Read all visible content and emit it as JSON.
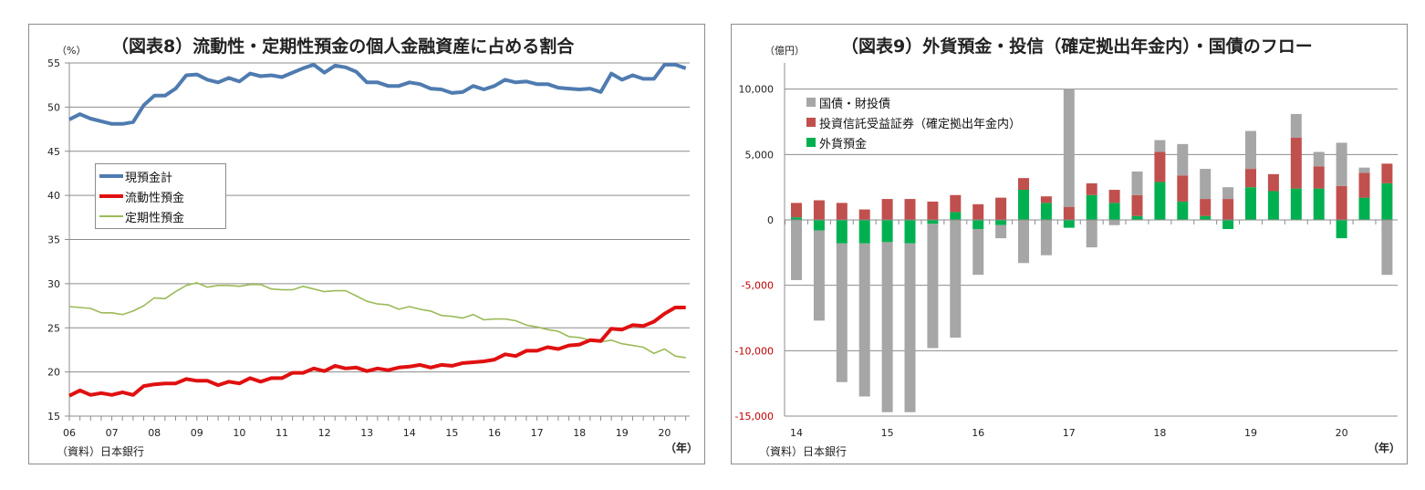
{
  "charts": {
    "left": {
      "title": "（図表8）流動性・定期性預金の個人金融資産に占める割合",
      "unit_label": "（%）",
      "source_label": "（資料）日本銀行",
      "year_suffix": "（年）"
    },
    "right": {
      "title": "（図表9）外貨預金・投信（確定拠出年金内）・国債のフロー",
      "unit_label": "（億円）",
      "source_label": "（資料）日本銀行",
      "year_suffix": "（年）"
    }
  },
  "chart_data": [
    {
      "type": "line",
      "title": "（図表8）流動性・定期性預金の個人金融資産に占める割合",
      "xlabel": "（年）",
      "ylabel": "（%）",
      "ylim": [
        15,
        55
      ],
      "yticks": [
        "15",
        "20",
        "25",
        "30",
        "35",
        "40",
        "45",
        "50",
        "55"
      ],
      "xticks": [
        "06",
        "07",
        "08",
        "09",
        "10",
        "11",
        "12",
        "13",
        "14",
        "15",
        "16",
        "17",
        "18",
        "19",
        "20"
      ],
      "x_start": "06Q1",
      "frequency": "quarterly",
      "grid": true,
      "legend_position": "center-left",
      "series": [
        {
          "name": "現預金計",
          "color": "#4f7bb0",
          "values": [
            48.6,
            49.2,
            48.7,
            48.4,
            48.1,
            48.1,
            48.3,
            50.2,
            51.3,
            51.3,
            52.1,
            53.6,
            53.7,
            53.1,
            52.8,
            53.3,
            52.9,
            53.8,
            53.5,
            53.6,
            53.4,
            53.9,
            54.4,
            54.8,
            53.9,
            54.7,
            54.5,
            54.0,
            52.8,
            52.8,
            52.4,
            52.4,
            52.8,
            52.6,
            52.1,
            52.0,
            51.6,
            51.7,
            52.4,
            52.0,
            52.4,
            53.1,
            52.8,
            52.9,
            52.6,
            52.6,
            52.2,
            52.1,
            52.0,
            52.1,
            51.7,
            53.8,
            53.1,
            53.6,
            53.2,
            53.2,
            54.8,
            54.8,
            54.4
          ]
        },
        {
          "name": "流動性預金",
          "color": "#e01010",
          "values": [
            17.3,
            17.9,
            17.4,
            17.6,
            17.4,
            17.7,
            17.4,
            18.4,
            18.6,
            18.7,
            18.7,
            19.2,
            19.0,
            19.0,
            18.5,
            18.9,
            18.7,
            19.3,
            18.9,
            19.3,
            19.3,
            19.9,
            19.9,
            20.4,
            20.1,
            20.7,
            20.4,
            20.5,
            20.1,
            20.4,
            20.2,
            20.5,
            20.6,
            20.8,
            20.5,
            20.8,
            20.7,
            21.0,
            21.1,
            21.2,
            21.4,
            22.0,
            21.8,
            22.4,
            22.4,
            22.8,
            22.6,
            23.0,
            23.1,
            23.6,
            23.5,
            24.9,
            24.8,
            25.3,
            25.2,
            25.7,
            26.6,
            27.3,
            27.3
          ]
        },
        {
          "name": "定期性預金",
          "color": "#9bbb59",
          "values": [
            27.4,
            27.3,
            27.2,
            26.7,
            26.7,
            26.5,
            26.9,
            27.5,
            28.4,
            28.3,
            29.1,
            29.8,
            30.1,
            29.6,
            29.8,
            29.8,
            29.7,
            29.9,
            29.9,
            29.4,
            29.3,
            29.3,
            29.7,
            29.4,
            29.1,
            29.2,
            29.2,
            28.6,
            28.0,
            27.7,
            27.6,
            27.1,
            27.4,
            27.1,
            26.9,
            26.4,
            26.3,
            26.1,
            26.5,
            25.9,
            26.0,
            26.0,
            25.8,
            25.3,
            25.1,
            24.8,
            24.6,
            24.0,
            23.9,
            23.6,
            23.4,
            23.6,
            23.2,
            23.0,
            22.8,
            22.1,
            22.6,
            21.8,
            21.6
          ]
        }
      ]
    },
    {
      "type": "bar",
      "stacked": true,
      "title": "（図表9）外貨預金・投信（確定拠出年金内）・国債のフロー",
      "xlabel": "（年）",
      "ylabel": "（億円）",
      "ylim": [
        -15000,
        12000
      ],
      "yticks": [
        "-15,000",
        "-10,000",
        "-5,000",
        "0",
        "5,000",
        "10,000"
      ],
      "xticks": [
        "14",
        "15",
        "16",
        "17",
        "18",
        "19",
        "20"
      ],
      "x_start": "14Q1",
      "frequency": "quarterly",
      "grid": true,
      "legend_position": "top-left",
      "series": [
        {
          "name": "国債・財投債",
          "color": "#a6a6a6",
          "values": [
            -4600,
            -6900,
            -10600,
            -11700,
            -13000,
            -12900,
            -9500,
            -9000,
            -3500,
            -1000,
            -3300,
            -2700,
            9000,
            -2100,
            -400,
            1800,
            900,
            2400,
            2300,
            900,
            2900,
            0,
            1800,
            1100,
            3300,
            400,
            -4200
          ]
        },
        {
          "name": "投資信託受益証券（確定拠出年金内）",
          "color": "#c0504d",
          "values": [
            1100,
            1500,
            1300,
            800,
            1600,
            1600,
            1400,
            1300,
            1200,
            1700,
            900,
            500,
            1000,
            900,
            1000,
            1600,
            2300,
            2000,
            1300,
            1600,
            1400,
            1300,
            3900,
            1700,
            2600,
            1900,
            1500
          ]
        },
        {
          "name": "外貨預金",
          "color": "#00b050",
          "values": [
            200,
            -800,
            -1800,
            -1800,
            -1700,
            -1800,
            -300,
            600,
            -700,
            -400,
            2300,
            1300,
            -600,
            1900,
            1300,
            300,
            2900,
            1400,
            300,
            -700,
            2500,
            2200,
            2400,
            2400,
            -1400,
            1700,
            2800
          ]
        }
      ]
    }
  ]
}
